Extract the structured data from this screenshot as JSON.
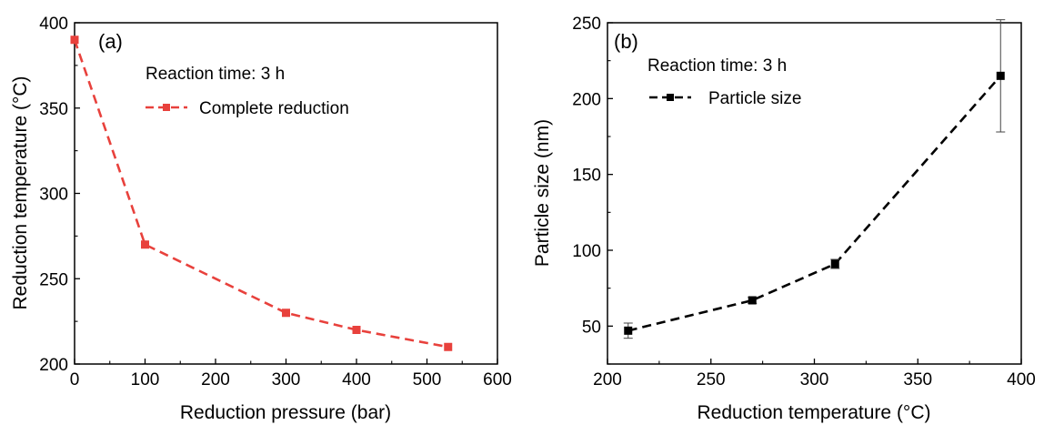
{
  "chart_data": [
    {
      "type": "line",
      "panel_label": "(a)",
      "annotation": "Reaction time: 3 h",
      "xlabel": "Reduction pressure (bar)",
      "ylabel": "Reduction temperature (°C)",
      "xlim": [
        0,
        600
      ],
      "ylim": [
        200,
        400
      ],
      "xticks": [
        "0",
        "100",
        "200",
        "300",
        "400",
        "500",
        "600"
      ],
      "yticks": [
        "200",
        "250",
        "300",
        "350",
        "400"
      ],
      "grid": false,
      "legend_position": "top-center",
      "series": [
        {
          "name": "Complete reduction",
          "color": "#e8413c",
          "line_style": "dashed",
          "marker": "square",
          "x": [
            0,
            100,
            300,
            400,
            530
          ],
          "y": [
            390,
            270,
            230,
            220,
            210
          ]
        }
      ]
    },
    {
      "type": "line",
      "panel_label": "(b)",
      "annotation": "Reaction time: 3 h",
      "xlabel": "Reduction temperature (°C)",
      "ylabel": "Particle size (nm)",
      "xlim": [
        200,
        400
      ],
      "ylim": [
        25,
        250
      ],
      "xticks": [
        "200",
        "250",
        "300",
        "350",
        "400"
      ],
      "yticks": [
        "50",
        "100",
        "150",
        "200",
        "250"
      ],
      "grid": false,
      "legend_position": "top-left",
      "series": [
        {
          "name": "Particle size",
          "color": "#000000",
          "line_style": "dashed",
          "marker": "square",
          "x": [
            210,
            270,
            310,
            390
          ],
          "y": [
            47,
            67,
            91,
            215
          ],
          "error": [
            5,
            2,
            3,
            37
          ]
        }
      ]
    }
  ]
}
